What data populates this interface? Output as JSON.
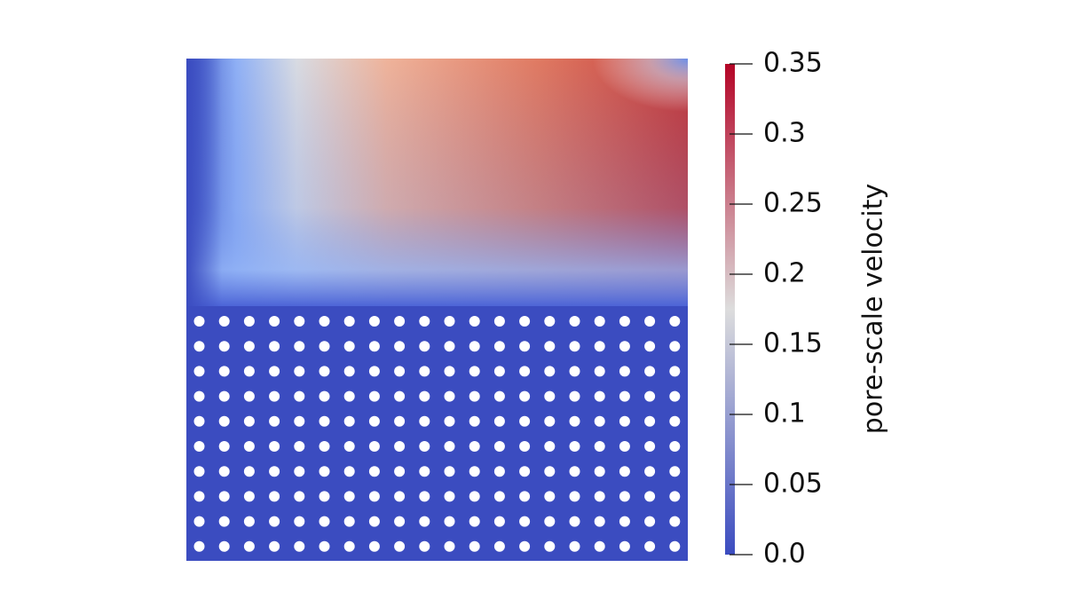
{
  "chart_data": {
    "type": "contour",
    "colorbar_label": "pore-scale velocity",
    "colormap": [
      "#3b4cc0",
      "#dddddd",
      "#b40426"
    ],
    "ylim": [
      0,
      0.35
    ],
    "yticks": [
      {
        "value": 0,
        "label": "0.0"
      },
      0.05,
      0.1,
      0.15,
      0.2,
      0.25,
      0.3,
      0.35
    ]
  }
}
